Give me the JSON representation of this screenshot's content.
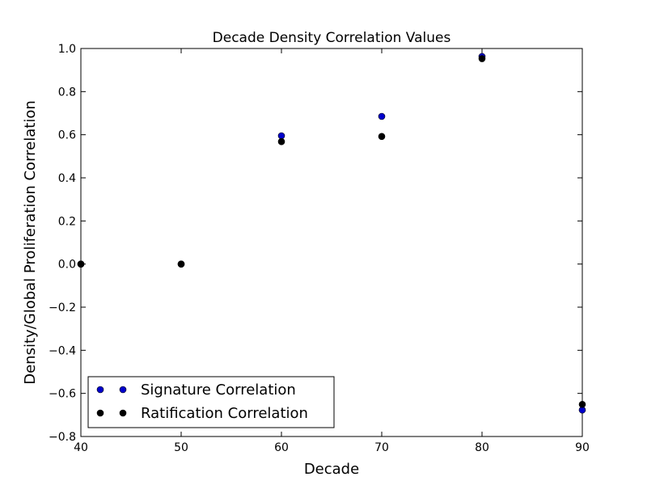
{
  "chart_data": {
    "type": "scatter",
    "title": "Decade Density Correlation Values",
    "xlabel": "Decade",
    "ylabel": "Density/Global Proliferation Correlation",
    "xlim": [
      40,
      90
    ],
    "ylim": [
      -0.8,
      1.0
    ],
    "x_ticks": [
      "40",
      "50",
      "60",
      "70",
      "80",
      "90"
    ],
    "y_ticks": [
      "−0.8",
      "−0.6",
      "−0.4",
      "−0.2",
      "0.0",
      "0.2",
      "0.4",
      "0.6",
      "0.8",
      "1.0"
    ],
    "legend_position": "lower-left",
    "series": [
      {
        "name": "Signature Correlation",
        "color": "#0000cc",
        "points": [
          {
            "x": 40,
            "y": 0.0
          },
          {
            "x": 50,
            "y": 0.0
          },
          {
            "x": 60,
            "y": 0.595
          },
          {
            "x": 70,
            "y": 0.685
          },
          {
            "x": 80,
            "y": 0.963
          },
          {
            "x": 90,
            "y": -0.677
          }
        ]
      },
      {
        "name": "Ratification Correlation",
        "color": "#000000",
        "points": [
          {
            "x": 40,
            "y": 0.0
          },
          {
            "x": 50,
            "y": 0.0
          },
          {
            "x": 60,
            "y": 0.568
          },
          {
            "x": 70,
            "y": 0.592
          },
          {
            "x": 80,
            "y": 0.953
          },
          {
            "x": 90,
            "y": -0.651
          }
        ]
      }
    ]
  }
}
